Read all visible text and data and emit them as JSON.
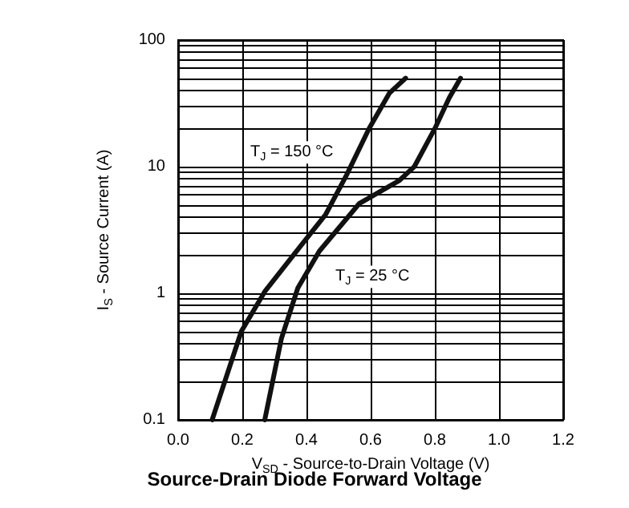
{
  "chart_data": {
    "type": "line",
    "title": "Source-Drain Diode Forward Voltage",
    "xlabel": "V$_{SD}$ - Source-to-Drain Voltage (V)",
    "ylabel": "I$_{S}$ - Source Current (A)",
    "series": [
      {
        "name": "T$_{J}$ = 150 °C",
        "color": "#111111",
        "x": [
          0.106,
          0.197,
          0.27,
          0.384,
          0.46,
          0.525,
          0.595,
          0.658,
          0.709
        ],
        "values": [
          0.1,
          0.5,
          1.03,
          2.4,
          4.2,
          8.6,
          20,
          38,
          50
        ]
      },
      {
        "name": "T$_{J}$ = 25 °C",
        "color": "#111111",
        "x": [
          0.27,
          0.322,
          0.373,
          0.44,
          0.564,
          0.69,
          0.736,
          0.8,
          0.845,
          0.88
        ],
        "values": [
          0.1,
          0.44,
          1.1,
          2.15,
          5.1,
          7.8,
          10,
          20,
          35,
          50
        ]
      }
    ],
    "xlim": [
      0,
      1.2
    ],
    "xticks": [
      {
        "value": 0,
        "label": "0.0"
      },
      {
        "value": 0.2,
        "label": "0.2"
      },
      {
        "value": 0.4,
        "label": "0.4"
      },
      {
        "value": 0.6,
        "label": "0.6"
      },
      {
        "value": 0.8,
        "label": "0.8"
      },
      {
        "value": 1,
        "label": "1.0"
      },
      {
        "value": 1.2,
        "label": "1.2"
      }
    ],
    "ylim": [
      0.1,
      100
    ],
    "log": true,
    "yticks": [
      0.1,
      {
        "value": 0.2,
        "label": null
      },
      {
        "value": 0.3,
        "label": null
      },
      {
        "value": 0.4,
        "label": null
      },
      {
        "value": 0.5,
        "label": null
      },
      {
        "value": 0.6,
        "label": null
      },
      {
        "value": 0.7,
        "label": null
      },
      {
        "value": 0.8,
        "label": null
      },
      {
        "value": 0.9,
        "label": null
      },
      1,
      {
        "value": 2,
        "label": null
      },
      {
        "value": 3,
        "label": null
      },
      {
        "value": 4,
        "label": null
      },
      {
        "value": 5,
        "label": null
      },
      {
        "value": 6,
        "label": null
      },
      {
        "value": 7,
        "label": null
      },
      {
        "value": 8,
        "label": null
      },
      {
        "value": 9,
        "label": null
      },
      10,
      {
        "value": 20,
        "label": null
      },
      {
        "value": 30,
        "label": null
      },
      {
        "value": 40,
        "label": null
      },
      {
        "value": 50,
        "label": null
      },
      {
        "value": 60,
        "label": null
      },
      {
        "value": 70,
        "label": null
      },
      {
        "value": 80,
        "label": null
      },
      {
        "value": 90,
        "label": null
      },
      100
    ],
    "grid": true,
    "line_style": "solid",
    "marker": "none"
  }
}
